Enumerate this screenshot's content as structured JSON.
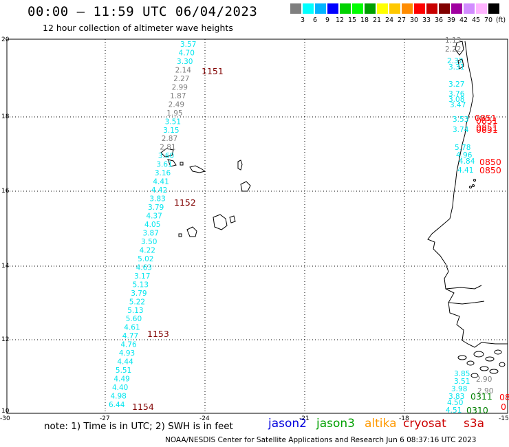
{
  "title": "00:00 – 11:59 UTC 06/04/2023",
  "subtitle": "12 hour collection of altimeter wave heights",
  "scale": {
    "unit": "(ft)",
    "colors": [
      "#7f7f7f",
      "#00ffff",
      "#00b4ff",
      "#0000ff",
      "#00d200",
      "#00ff00",
      "#00a000",
      "#ffff00",
      "#ffc800",
      "#ff8c00",
      "#ff0000",
      "#c80000",
      "#800000",
      "#a000a0",
      "#d28cff",
      "#ffb4ff",
      "#000000"
    ],
    "labels": [
      "3",
      "6",
      "9",
      "12",
      "15",
      "18",
      "21",
      "24",
      "27",
      "30",
      "33",
      "36",
      "39",
      "42",
      "45",
      "70"
    ]
  },
  "axes": {
    "lon_labels": [
      "-30",
      "-27",
      "-24",
      "-21",
      "-18",
      "-15"
    ],
    "lat_labels": [
      "20",
      "18",
      "16",
      "14",
      "12",
      "10"
    ]
  },
  "track_points": [
    {
      "v": "3.57",
      "c": "#00e5ee"
    },
    {
      "v": "4.70",
      "c": "#00e5ee"
    },
    {
      "v": "3.30",
      "c": "#00e5ee"
    },
    {
      "v": "2.14",
      "c": "#7f7f7f"
    },
    {
      "v": "2.27",
      "c": "#7f7f7f"
    },
    {
      "v": "2.99",
      "c": "#7f7f7f"
    },
    {
      "v": "1.87",
      "c": "#7f7f7f"
    },
    {
      "v": "2.49",
      "c": "#7f7f7f"
    },
    {
      "v": "1.95",
      "c": "#7f7f7f"
    },
    {
      "v": "3.51",
      "c": "#00e5ee"
    },
    {
      "v": "3.15",
      "c": "#00e5ee"
    },
    {
      "v": "2.87",
      "c": "#7f7f7f"
    },
    {
      "v": "2.81",
      "c": "#7f7f7f"
    },
    {
      "v": "3.60",
      "c": "#00e5ee"
    },
    {
      "v": "3.61",
      "c": "#00e5ee"
    },
    {
      "v": "3.16",
      "c": "#00e5ee"
    },
    {
      "v": "4.41",
      "c": "#00e5ee"
    },
    {
      "v": "4.42",
      "c": "#00e5ee"
    },
    {
      "v": "3.83",
      "c": "#00e5ee"
    },
    {
      "v": "3.79",
      "c": "#00e5ee"
    },
    {
      "v": "4.37",
      "c": "#00e5ee"
    },
    {
      "v": "4.05",
      "c": "#00e5ee"
    },
    {
      "v": "3.87",
      "c": "#00e5ee"
    },
    {
      "v": "3.50",
      "c": "#00e5ee"
    },
    {
      "v": "4.22",
      "c": "#00e5ee"
    },
    {
      "v": "5.02",
      "c": "#00e5ee"
    },
    {
      "v": "4.63",
      "c": "#00e5ee"
    },
    {
      "v": "3.17",
      "c": "#00e5ee"
    },
    {
      "v": "5.13",
      "c": "#00e5ee"
    },
    {
      "v": "3.79",
      "c": "#00e5ee"
    },
    {
      "v": "5.22",
      "c": "#00e5ee"
    },
    {
      "v": "5.13",
      "c": "#00e5ee"
    },
    {
      "v": "5.60",
      "c": "#00e5ee"
    },
    {
      "v": "4.61",
      "c": "#00e5ee"
    },
    {
      "v": "4.77",
      "c": "#00e5ee"
    },
    {
      "v": "4.76",
      "c": "#00e5ee"
    },
    {
      "v": "4.93",
      "c": "#00e5ee"
    },
    {
      "v": "4.44",
      "c": "#00e5ee"
    },
    {
      "v": "5.51",
      "c": "#00e5ee"
    },
    {
      "v": "4.49",
      "c": "#00e5ee"
    },
    {
      "v": "4.40",
      "c": "#00e5ee"
    },
    {
      "v": "4.98",
      "c": "#00e5ee"
    },
    {
      "v": "6.44",
      "c": "#00e5ee"
    }
  ],
  "track_times": [
    "1151",
    "1152",
    "1153",
    "1154"
  ],
  "coast_points": [
    {
      "v": "1.13",
      "c": "#7f7f7f"
    },
    {
      "v": "2.22",
      "c": "#7f7f7f"
    },
    {
      "v": "2.32",
      "c": "#00e5ee"
    },
    {
      "v": "3.31",
      "c": "#00e5ee"
    },
    {
      "v": "3.27",
      "c": "#00e5ee"
    },
    {
      "v": "3.76",
      "c": "#00e5ee"
    },
    {
      "v": "3.08",
      "c": "#00e5ee"
    },
    {
      "v": "3.47",
      "c": "#00e5ee"
    },
    {
      "v": "3.53",
      "c": "#00e5ee"
    },
    {
      "v": "3.74",
      "c": "#00e5ee"
    },
    {
      "v": "5.78",
      "c": "#00e5ee"
    },
    {
      "v": "4.96",
      "c": "#00e5ee"
    },
    {
      "v": "4.84",
      "c": "#00e5ee"
    },
    {
      "v": "4.41",
      "c": "#00e5ee"
    },
    {
      "v": "3.85",
      "c": "#00e5ee"
    },
    {
      "v": "3.51",
      "c": "#00e5ee"
    },
    {
      "v": "3.98",
      "c": "#00e5ee"
    },
    {
      "v": "3.83",
      "c": "#00e5ee"
    },
    {
      "v": "4.50",
      "c": "#00e5ee"
    },
    {
      "v": "4.51",
      "c": "#00e5ee"
    },
    {
      "v": "2.90",
      "c": "#7f7f7f"
    },
    {
      "v": "2.90",
      "c": "#7f7f7f"
    }
  ],
  "coast_times": [
    {
      "t": "0851",
      "c": "#ff0000"
    },
    {
      "t": "0851",
      "c": "#ff0000"
    },
    {
      "t": "0851",
      "c": "#ff0000"
    },
    {
      "t": "0851",
      "c": "#ff0000"
    },
    {
      "t": "0850",
      "c": "#ff0000"
    },
    {
      "t": "0850",
      "c": "#ff0000"
    },
    {
      "t": "0311",
      "c": "#008000"
    },
    {
      "t": "0310",
      "c": "#008000"
    },
    {
      "t": "08",
      "c": "#ff0000"
    },
    {
      "t": "0",
      "c": "#ff0000"
    }
  ],
  "note": "note: 1) Time is in UTC; 2) SWH is in feet",
  "legend": [
    {
      "name": "jason2",
      "color": "#0000dd"
    },
    {
      "name": "jason3",
      "color": "#00a000"
    },
    {
      "name": "altika",
      "color": "#ff9900"
    },
    {
      "name": "cryosat",
      "color": "#cc0000"
    },
    {
      "name": "s3a",
      "color": "#cc0000"
    }
  ],
  "footer": "NOAA/NESDIS Center for Satellite Applications and Research   Jun  6 08:37:16 UTC 2023"
}
